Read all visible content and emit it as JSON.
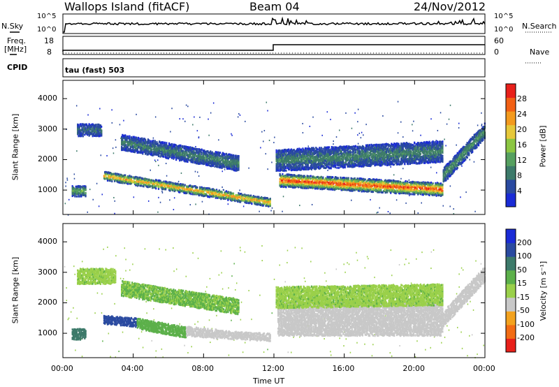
{
  "header": {
    "station": "Wallops Island (fitACF)",
    "beam": "Beam 04",
    "date": "24/Nov/2012"
  },
  "status_panels": {
    "noise_left_label": "N.Sky",
    "noise_left_ticks": [
      "10^5",
      "10^0"
    ],
    "noise_right_label": "N.Search",
    "noise_right_ticks": [
      "10^5",
      "10^0"
    ],
    "freq_label_line1": "Freq.",
    "freq_label_line2": "[MHz]",
    "freq_ticks": [
      "18",
      "8"
    ],
    "nave_label": "Nave",
    "nave_ticks": [
      "60",
      "0"
    ],
    "cpid_label": "CPID",
    "cpid_text": "tau (fast) 503"
  },
  "colors": {
    "power_scale": [
      "#1a2bd6",
      "#2a4aa0",
      "#3d7a6a",
      "#56a060",
      "#8cc642",
      "#e6c83a",
      "#f39a1e",
      "#f26014",
      "#e8201a"
    ],
    "velocity_scale": [
      "#1a2bd6",
      "#2a4aa0",
      "#3d7a6a",
      "#5cb04a",
      "#9ad04a",
      "#c8c8c8",
      "#f3a21e",
      "#f26c14",
      "#e8201a"
    ],
    "ground_scatter": "#c8c8c8"
  },
  "chart_data": [
    {
      "type": "heatmap",
      "panel": "power",
      "xlabel": "",
      "ylabel": "Slant Range [km]",
      "x_unit": "hours UT",
      "xlim": [
        0,
        24
      ],
      "ylim": [
        200,
        4600
      ],
      "y_ticks": [
        "1000",
        "2000",
        "3000",
        "4000"
      ],
      "colorbar": {
        "label": "Power [dB]",
        "range": [
          0,
          32
        ],
        "ticks": [
          "4",
          "8",
          "12",
          "16",
          "20",
          "24",
          "28"
        ]
      },
      "scatter_regions": [
        {
          "name": "",
          "t_start": 2.3,
          "t_end": 11.8,
          "range_start": 1500,
          "range_end": 620,
          "thickness": 280,
          "peak_power": 24
        },
        {
          "name": "",
          "t_start": 12.3,
          "t_end": 21.6,
          "range_start": 1350,
          "range_end": 1050,
          "thickness": 420,
          "peak_power": 30
        },
        {
          "name": "",
          "t_start": 12.1,
          "t_end": 21.6,
          "range_start": 2000,
          "range_end": 2300,
          "thickness": 700,
          "peak_power": 10
        },
        {
          "name": "",
          "t_start": 0.8,
          "t_end": 2.2,
          "range_start": 3000,
          "range_end": 3000,
          "thickness": 400,
          "peak_power": 8
        },
        {
          "name": "",
          "t_start": 3.3,
          "t_end": 10.0,
          "range_start": 2600,
          "range_end": 1900,
          "thickness": 500,
          "peak_power": 10
        },
        {
          "name": "",
          "t_start": 21.6,
          "t_end": 24.0,
          "range_start": 1500,
          "range_end": 3000,
          "thickness": 500,
          "peak_power": 12
        },
        {
          "name": "",
          "t_start": 0.5,
          "t_end": 1.3,
          "range_start": 1000,
          "range_end": 1000,
          "thickness": 350,
          "peak_power": 14
        }
      ]
    },
    {
      "type": "heatmap",
      "panel": "velocity",
      "xlabel": "Time UT",
      "ylabel": "Slant Range [km]",
      "x_unit": "hours UT",
      "xlim": [
        0,
        24
      ],
      "ylim": [
        200,
        4600
      ],
      "x_ticks": [
        "00:00",
        "04:00",
        "08:00",
        "12:00",
        "16:00",
        "20:00",
        "00:00"
      ],
      "y_ticks": [
        "1000",
        "2000",
        "3000",
        "4000"
      ],
      "colorbar": {
        "label": "Velocity [m s⁻¹]",
        "range": [
          -250,
          250
        ],
        "ticks": [
          "200",
          "100",
          "50",
          "15",
          "-15",
          "-50",
          "-100",
          "-200"
        ]
      },
      "scatter_regions": [
        {
          "name": "",
          "t_start": 2.3,
          "t_end": 4.2,
          "range_start": 1480,
          "range_end": 1380,
          "thickness": 280,
          "velocity": 150
        },
        {
          "name": "",
          "t_start": 4.2,
          "t_end": 7.0,
          "range_start": 1350,
          "range_end": 1050,
          "thickness": 350,
          "velocity": 40
        },
        {
          "name": "",
          "t_start": 7.0,
          "t_end": 8.8,
          "range_start": 1100,
          "range_end": 1000,
          "thickness": 300,
          "velocity": -60
        },
        {
          "name": "",
          "t_start": 8.8,
          "t_end": 10.0,
          "range_start": 1000,
          "range_end": 950,
          "thickness": 250,
          "velocity": 0
        },
        {
          "name": "",
          "t_start": 10.0,
          "t_end": 11.8,
          "range_start": 950,
          "range_end": 900,
          "thickness": 250,
          "velocity": -60
        },
        {
          "name": "",
          "t_start": 12.2,
          "t_end": 21.6,
          "range_start": 1500,
          "range_end": 1500,
          "thickness": 1100,
          "velocity": 0
        },
        {
          "name": "",
          "t_start": 12.1,
          "t_end": 21.6,
          "range_start": 2200,
          "range_end": 2300,
          "thickness": 700,
          "velocity": 20
        },
        {
          "name": "",
          "t_start": 0.8,
          "t_end": 3.0,
          "range_start": 2900,
          "range_end": 2900,
          "thickness": 500,
          "velocity": 20
        },
        {
          "name": "",
          "t_start": 3.3,
          "t_end": 10.0,
          "range_start": 2500,
          "range_end": 1900,
          "thickness": 500,
          "velocity": 30
        },
        {
          "name": "",
          "t_start": 21.6,
          "t_end": 24.0,
          "range_start": 1500,
          "range_end": 3000,
          "thickness": 500,
          "velocity": 0
        },
        {
          "name": "",
          "t_start": 0.5,
          "t_end": 1.3,
          "range_start": 1000,
          "range_end": 1000,
          "thickness": 350,
          "velocity": 100
        }
      ]
    }
  ]
}
